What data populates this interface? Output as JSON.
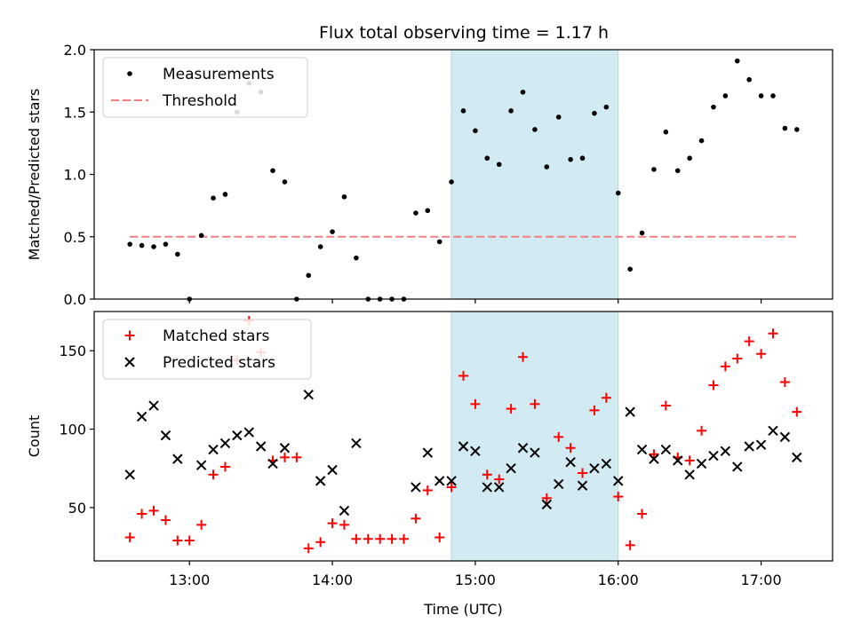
{
  "title": "Flux total observing time = 1.17 h",
  "colors": {
    "measurement": "#000000",
    "threshold": "#f08080",
    "matched": "#ff0000",
    "predicted": "#000000",
    "highlight": "#add8e6"
  },
  "chart_data": [
    {
      "type": "scatter",
      "ylabel": "Matched/Predicted stars",
      "ylim": [
        0,
        2.0
      ],
      "yticks": [
        0.0,
        0.5,
        1.0,
        1.5,
        2.0
      ],
      "ytick_labels": [
        "0.0",
        "0.5",
        "1.0",
        "1.5",
        "2.0"
      ],
      "xlim": [
        "12:20",
        "17:30"
      ],
      "highlight_span": [
        "14:50",
        "16:00"
      ],
      "legend": {
        "placement": "upper-left",
        "entries": [
          "Measurements",
          "Threshold"
        ]
      },
      "threshold": {
        "name": "Threshold",
        "value": 0.5,
        "x_range": [
          "12:35",
          "17:15"
        ]
      },
      "series": [
        {
          "name": "Measurements",
          "points": [
            [
              "12:35",
              0.44
            ],
            [
              "12:40",
              0.43
            ],
            [
              "12:45",
              0.42
            ],
            [
              "12:50",
              0.44
            ],
            [
              "12:55",
              0.36
            ],
            [
              "13:00",
              0.0
            ],
            [
              "13:05",
              0.51
            ],
            [
              "13:10",
              0.81
            ],
            [
              "13:15",
              0.84
            ],
            [
              "13:20",
              1.5
            ],
            [
              "13:25",
              1.73
            ],
            [
              "13:30",
              1.66
            ],
            [
              "13:35",
              1.03
            ],
            [
              "13:40",
              0.94
            ],
            [
              "13:45",
              0.0
            ],
            [
              "13:50",
              0.19
            ],
            [
              "13:55",
              0.42
            ],
            [
              "14:00",
              0.54
            ],
            [
              "14:05",
              0.82
            ],
            [
              "14:10",
              0.33
            ],
            [
              "14:15",
              0.0
            ],
            [
              "14:20",
              0.0
            ],
            [
              "14:25",
              0.0
            ],
            [
              "14:30",
              0.0
            ],
            [
              "14:35",
              0.69
            ],
            [
              "14:40",
              0.71
            ],
            [
              "14:45",
              0.46
            ],
            [
              "14:50",
              0.94
            ],
            [
              "14:55",
              1.51
            ],
            [
              "15:00",
              1.35
            ],
            [
              "15:05",
              1.13
            ],
            [
              "15:10",
              1.08
            ],
            [
              "15:15",
              1.51
            ],
            [
              "15:20",
              1.66
            ],
            [
              "15:25",
              1.36
            ],
            [
              "15:30",
              1.06
            ],
            [
              "15:35",
              1.46
            ],
            [
              "15:40",
              1.12
            ],
            [
              "15:45",
              1.13
            ],
            [
              "15:50",
              1.49
            ],
            [
              "15:55",
              1.54
            ],
            [
              "16:00",
              0.85
            ],
            [
              "16:05",
              0.24
            ],
            [
              "16:10",
              0.53
            ],
            [
              "16:15",
              1.04
            ],
            [
              "16:20",
              1.34
            ],
            [
              "16:25",
              1.03
            ],
            [
              "16:30",
              1.13
            ],
            [
              "16:35",
              1.27
            ],
            [
              "16:40",
              1.54
            ],
            [
              "16:45",
              1.63
            ],
            [
              "16:50",
              1.91
            ],
            [
              "16:55",
              1.76
            ],
            [
              "17:00",
              1.63
            ],
            [
              "17:05",
              1.63
            ],
            [
              "17:10",
              1.37
            ],
            [
              "17:15",
              1.36
            ]
          ]
        }
      ]
    },
    {
      "type": "scatter",
      "ylabel": "Count",
      "xlabel": "Time (UTC)",
      "ylim": [
        16,
        175
      ],
      "yticks": [
        50,
        100,
        150
      ],
      "ytick_labels": [
        "50",
        "100",
        "150"
      ],
      "xlim": [
        "12:20",
        "17:30"
      ],
      "xticks": [
        "13:00",
        "14:00",
        "15:00",
        "16:00",
        "17:00"
      ],
      "xtick_labels": [
        "13:00",
        "14:00",
        "15:00",
        "16:00",
        "17:00"
      ],
      "highlight_span": [
        "14:50",
        "16:00"
      ],
      "legend": {
        "placement": "upper-left",
        "entries": [
          "Matched stars",
          "Predicted stars"
        ]
      },
      "series": [
        {
          "name": "Matched stars",
          "marker": "plus",
          "points": [
            [
              "12:35",
              31
            ],
            [
              "12:40",
              46
            ],
            [
              "12:45",
              48
            ],
            [
              "12:50",
              42
            ],
            [
              "12:55",
              29
            ],
            [
              "13:00",
              29
            ],
            [
              "13:05",
              39
            ],
            [
              "13:10",
              71
            ],
            [
              "13:15",
              76
            ],
            [
              "13:20",
              144
            ],
            [
              "13:25",
              169
            ],
            [
              "13:30",
              149
            ],
            [
              "13:35",
              80
            ],
            [
              "13:40",
              82
            ],
            [
              "13:45",
              82
            ],
            [
              "13:50",
              24
            ],
            [
              "13:55",
              28
            ],
            [
              "14:00",
              40
            ],
            [
              "14:05",
              39
            ],
            [
              "14:10",
              30
            ],
            [
              "14:15",
              30
            ],
            [
              "14:20",
              30
            ],
            [
              "14:25",
              30
            ],
            [
              "14:30",
              30
            ],
            [
              "14:35",
              43
            ],
            [
              "14:40",
              61
            ],
            [
              "14:45",
              31
            ],
            [
              "14:50",
              63
            ],
            [
              "14:55",
              134
            ],
            [
              "15:00",
              116
            ],
            [
              "15:05",
              71
            ],
            [
              "15:10",
              68
            ],
            [
              "15:15",
              113
            ],
            [
              "15:20",
              146
            ],
            [
              "15:25",
              116
            ],
            [
              "15:30",
              56
            ],
            [
              "15:35",
              95
            ],
            [
              "15:40",
              88
            ],
            [
              "15:45",
              72
            ],
            [
              "15:50",
              112
            ],
            [
              "15:55",
              120
            ],
            [
              "16:00",
              57
            ],
            [
              "16:05",
              26
            ],
            [
              "16:10",
              46
            ],
            [
              "16:15",
              84
            ],
            [
              "16:20",
              115
            ],
            [
              "16:25",
              82
            ],
            [
              "16:30",
              80
            ],
            [
              "16:35",
              99
            ],
            [
              "16:40",
              128
            ],
            [
              "16:45",
              140
            ],
            [
              "16:50",
              145
            ],
            [
              "16:55",
              156
            ],
            [
              "17:00",
              148
            ],
            [
              "17:05",
              161
            ],
            [
              "17:10",
              130
            ],
            [
              "17:15",
              111
            ]
          ]
        },
        {
          "name": "Predicted stars",
          "marker": "x",
          "points": [
            [
              "12:35",
              71
            ],
            [
              "12:40",
              108
            ],
            [
              "12:45",
              115
            ],
            [
              "12:50",
              96
            ],
            [
              "12:55",
              81
            ],
            [
              "13:05",
              77
            ],
            [
              "13:10",
              87
            ],
            [
              "13:15",
              91
            ],
            [
              "13:20",
              96
            ],
            [
              "13:25",
              98
            ],
            [
              "13:30",
              89
            ],
            [
              "13:35",
              78
            ],
            [
              "13:40",
              88
            ],
            [
              "13:50",
              122
            ],
            [
              "13:55",
              67
            ],
            [
              "14:00",
              74
            ],
            [
              "14:05",
              48
            ],
            [
              "14:10",
              91
            ],
            [
              "14:35",
              63
            ],
            [
              "14:40",
              85
            ],
            [
              "14:45",
              67
            ],
            [
              "14:50",
              67
            ],
            [
              "14:55",
              89
            ],
            [
              "15:00",
              86
            ],
            [
              "15:05",
              63
            ],
            [
              "15:10",
              63
            ],
            [
              "15:15",
              75
            ],
            [
              "15:20",
              88
            ],
            [
              "15:25",
              85
            ],
            [
              "15:30",
              52
            ],
            [
              "15:35",
              65
            ],
            [
              "15:40",
              79
            ],
            [
              "15:45",
              64
            ],
            [
              "15:50",
              75
            ],
            [
              "15:55",
              78
            ],
            [
              "16:00",
              67
            ],
            [
              "16:05",
              111
            ],
            [
              "16:10",
              87
            ],
            [
              "16:15",
              81
            ],
            [
              "16:20",
              87
            ],
            [
              "16:25",
              80
            ],
            [
              "16:30",
              71
            ],
            [
              "16:35",
              78
            ],
            [
              "16:40",
              83
            ],
            [
              "16:45",
              86
            ],
            [
              "16:50",
              76
            ],
            [
              "16:55",
              89
            ],
            [
              "17:00",
              90
            ],
            [
              "17:05",
              99
            ],
            [
              "17:10",
              95
            ],
            [
              "17:15",
              82
            ]
          ]
        }
      ]
    }
  ]
}
